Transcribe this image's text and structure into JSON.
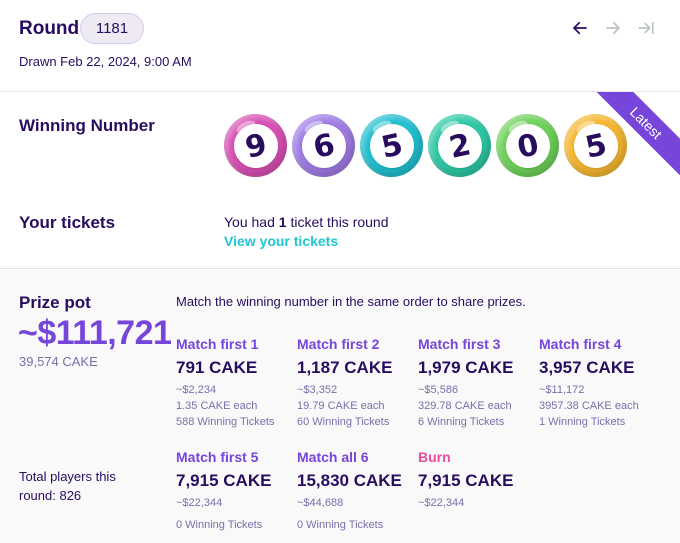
{
  "header": {
    "round_label": "Round",
    "round_value": "1181",
    "drawn": "Drawn Feb 22, 2024, 9:00 AM"
  },
  "nav": {
    "prev_icon": "arrow-left-icon",
    "next_icon": "arrow-right-icon",
    "last_icon": "arrow-to-end-icon"
  },
  "winning": {
    "label": "Winning Number",
    "ribbon": "Latest",
    "balls": [
      {
        "digit": "9",
        "color": "#d750b4"
      },
      {
        "digit": "6",
        "color": "#9f7be4"
      },
      {
        "digit": "5",
        "color": "#21bfd0"
      },
      {
        "digit": "2",
        "color": "#2ec8a5"
      },
      {
        "digit": "0",
        "color": "#6fd15a"
      },
      {
        "digit": "5",
        "color": "#f5b731"
      }
    ]
  },
  "tickets": {
    "label": "Your tickets",
    "text_pre": "You had ",
    "count": "1",
    "text_post": " ticket this round",
    "link": "View your tickets"
  },
  "prize": {
    "label": "Prize pot",
    "usd": "~$111,721",
    "cake": "39,574 CAKE",
    "total_players": "Total players this round: 826",
    "description": "Match the winning number in the same order to share prizes."
  },
  "brackets": [
    {
      "title": "Match first 1",
      "cake": "791 CAKE",
      "usd": "~$2,234",
      "each": "1.35 CAKE each",
      "tickets": "588 Winning Tickets"
    },
    {
      "title": "Match first 2",
      "cake": "1,187 CAKE",
      "usd": "~$3,352",
      "each": "19.79 CAKE each",
      "tickets": "60 Winning Tickets"
    },
    {
      "title": "Match first 3",
      "cake": "1,979 CAKE",
      "usd": "~$5,586",
      "each": "329.78 CAKE each",
      "tickets": "6 Winning Tickets"
    },
    {
      "title": "Match first 4",
      "cake": "3,957 CAKE",
      "usd": "~$11,172",
      "each": "3957.38 CAKE each",
      "tickets": "1 Winning Tickets"
    },
    {
      "title": "Match first 5",
      "cake": "7,915 CAKE",
      "usd": "~$22,344",
      "tickets": "0 Winning Tickets"
    },
    {
      "title": "Match all 6",
      "cake": "15,830 CAKE",
      "usd": "~$44,688",
      "tickets": "0 Winning Tickets"
    },
    {
      "title": "Burn",
      "cake": "7,915 CAKE",
      "usd": "~$22,344"
    }
  ],
  "colors": {
    "primary": "#7645d9",
    "text": "#280d5f",
    "secondary": "#1fc7d4",
    "burn": "#ed4b9e",
    "subtle": "#7a6eaa"
  }
}
